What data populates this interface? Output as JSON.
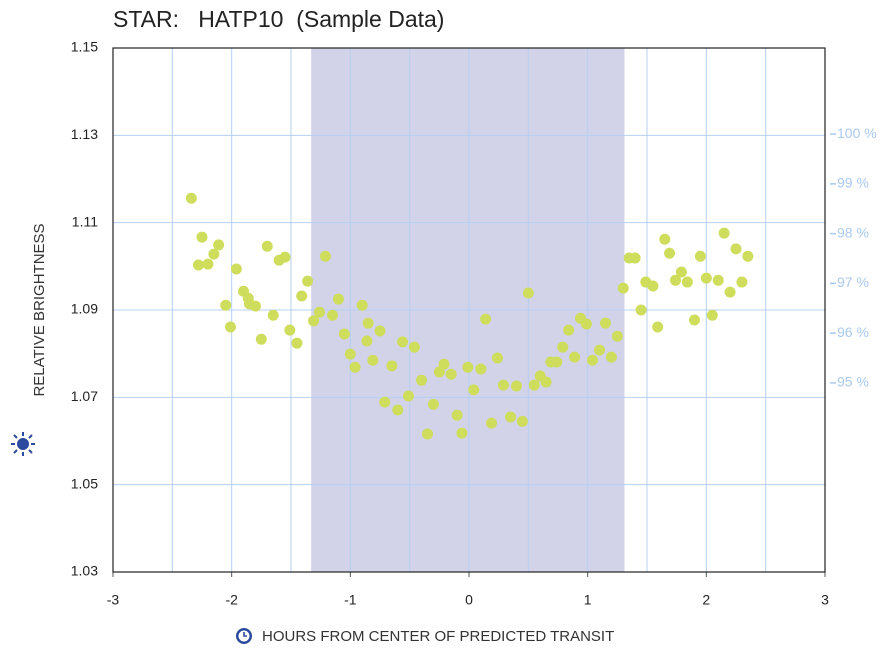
{
  "chart_data": {
    "type": "scatter",
    "title": "STAR:   HATP10  (Sample Data)",
    "x_label": "HOURS FROM CENTER OF PREDICTED TRANSIT",
    "y_label": "RELATIVE BRIGHTNESS",
    "xlim": [
      -3,
      3
    ],
    "xticks": [
      -3,
      -2,
      -1,
      0,
      1,
      2,
      3
    ],
    "x_grid": [
      -2.5,
      -2,
      -1.5,
      -1,
      -0.5,
      0,
      0.5,
      1,
      1.5,
      2,
      2.5
    ],
    "ylim": [
      1.03,
      1.15
    ],
    "yticks": [
      1.03,
      1.05,
      1.07,
      1.09,
      1.11,
      1.13,
      1.15
    ],
    "y2lim": [
      91.2,
      101.73
    ],
    "y2ticks": [
      {
        "value": 100,
        "label": "100 %"
      },
      {
        "value": 99,
        "label": "99 %"
      },
      {
        "value": 98,
        "label": "98 %"
      },
      {
        "value": 97,
        "label": "97 %"
      },
      {
        "value": 96,
        "label": "96 %"
      },
      {
        "value": 95,
        "label": "95 %"
      }
    ],
    "transit_window": [
      -1.33,
      1.31
    ],
    "band_color": "#d2d2e9",
    "grid_color": "#b4d0f2",
    "series": [
      {
        "color": "#cfdd5c",
        "x": [
          -2.34,
          -2.25,
          -2.28,
          -2.2,
          -2.15,
          -2.11,
          -2.05,
          -2.01,
          -1.96,
          -1.9,
          -1.86,
          -1.85,
          -1.8,
          -1.75,
          -1.7,
          -1.65,
          -1.6,
          -1.55,
          -1.51,
          -1.45,
          -1.41,
          -1.36,
          -1.31,
          -1.26,
          -1.21,
          -1.15,
          -1.1,
          -1.05,
          -1.0,
          -0.96,
          -0.9,
          -0.86,
          -0.85,
          -0.81,
          -0.75,
          -0.71,
          -0.65,
          -0.6,
          -0.56,
          -0.51,
          -0.46,
          -0.4,
          -0.35,
          -0.3,
          -0.25,
          -0.21,
          -0.15,
          -0.1,
          -0.06,
          -0.01,
          0.04,
          0.1,
          0.14,
          0.19,
          0.24,
          0.29,
          0.35,
          0.4,
          0.45,
          0.5,
          0.55,
          0.6,
          0.65,
          0.69,
          0.74,
          0.79,
          0.84,
          0.89,
          0.94,
          0.99,
          1.04,
          1.1,
          1.15,
          1.2,
          1.25,
          1.3,
          1.35,
          1.4,
          1.45,
          1.49,
          1.55,
          1.59,
          1.65,
          1.69,
          1.74,
          1.79,
          1.84,
          1.9,
          1.95,
          2.0,
          2.05,
          2.1,
          2.15,
          2.2,
          2.25,
          2.3,
          2.35
        ],
        "values": [
          1.1156,
          1.1067,
          1.1003,
          1.1005,
          1.1028,
          1.1049,
          1.0911,
          1.0861,
          1.0994,
          1.0943,
          1.0927,
          1.0914,
          1.0909,
          1.0833,
          1.1046,
          1.0888,
          1.1014,
          1.1021,
          1.0854,
          1.0824,
          1.0932,
          1.0966,
          1.0875,
          1.0895,
          1.1023,
          1.0888,
          1.0925,
          1.0845,
          1.0799,
          1.0769,
          1.0911,
          1.0829,
          1.087,
          1.0785,
          1.0852,
          1.0689,
          1.0772,
          1.0671,
          1.0827,
          1.0703,
          1.0815,
          1.0739,
          1.0616,
          1.0684,
          1.0758,
          1.0776,
          1.0753,
          1.0659,
          1.0618,
          1.0769,
          1.0717,
          1.0765,
          1.0879,
          1.0641,
          1.079,
          1.0728,
          1.0655,
          1.0726,
          1.0645,
          1.0939,
          1.0728,
          1.0749,
          1.0735,
          1.0781,
          1.0781,
          1.0815,
          1.0854,
          1.0792,
          1.0881,
          1.0868,
          1.0785,
          1.0808,
          1.087,
          1.0792,
          1.084,
          1.095,
          1.1019,
          1.1019,
          1.09,
          1.0964,
          1.0955,
          1.0861,
          1.1062,
          1.103,
          1.0968,
          1.0987,
          1.0964,
          1.0877,
          1.1023,
          1.0973,
          1.0888,
          1.0968,
          1.1076,
          1.0941,
          1.104,
          1.0964,
          1.1023
        ]
      }
    ]
  }
}
